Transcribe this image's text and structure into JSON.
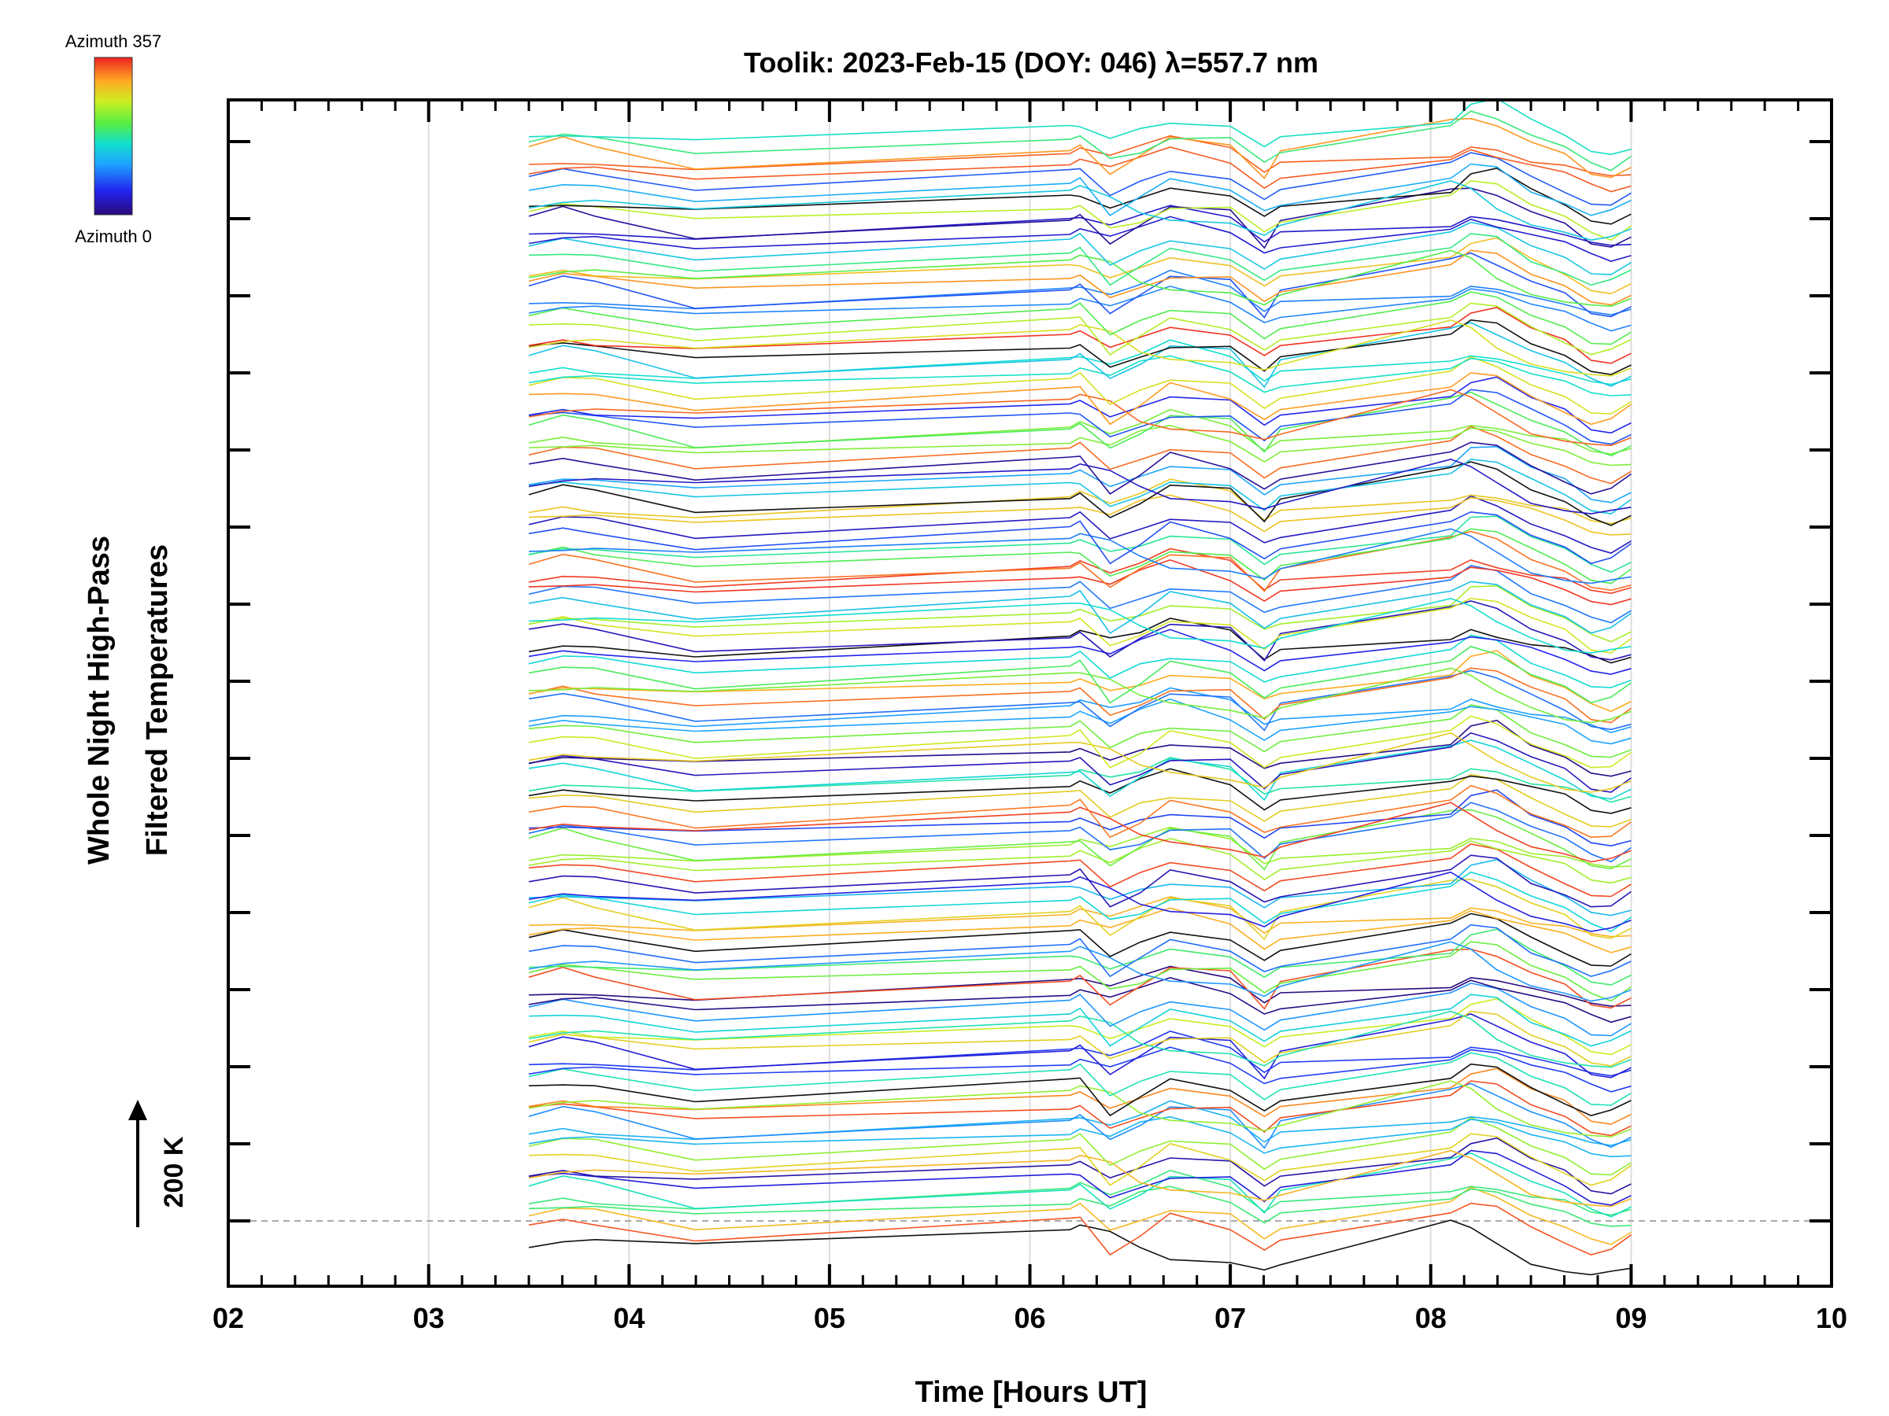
{
  "chart_data": {
    "type": "line",
    "title": "Toolik: 2023-Feb-15 (DOY: 046) λ=557.7 nm",
    "xlabel": "Time [Hours UT]",
    "ylabel_line1": "Whole Night High-Pass",
    "ylabel_line2": "Filtered Temperatures",
    "scale_label": "200 K",
    "colorbar": {
      "top_label": "Azimuth 357",
      "bottom_label": "Azimuth 0",
      "colormap": "rainbow"
    },
    "x_ticks": [
      "02",
      "03",
      "04",
      "05",
      "06",
      "07",
      "08",
      "09",
      "10"
    ],
    "xlim": [
      2,
      10
    ],
    "y_tick_count": 15,
    "grid": true,
    "time_samples": [
      3.5,
      3.67,
      3.83,
      4.33,
      6.2,
      6.25,
      6.4,
      6.55,
      6.7,
      7.0,
      7.17,
      7.25,
      8.1,
      8.2,
      8.33,
      8.5,
      8.67,
      8.8,
      8.9,
      9.0
    ],
    "series_count": 128,
    "series_description_note": "",
    "lines": [
      {
        "azimuth": 0,
        "offset": 0,
        "values": [
          -20,
          -10,
          -8,
          -20,
          20,
          28,
          10,
          -30,
          -50,
          -60,
          -80,
          -60,
          40,
          20,
          -20,
          -60,
          -80,
          -90,
          -85,
          -70
        ]
      },
      {
        "azimuth": 300,
        "offset": 1,
        "values": [
          5,
          15,
          10,
          -30,
          20,
          30,
          -60,
          -20,
          30,
          0,
          -50,
          -30,
          30,
          60,
          50,
          0,
          -30,
          -60,
          -50,
          -20
        ]
      },
      {
        "azimuth": 220,
        "offset": 2,
        "values": [
          10,
          25,
          20,
          -20,
          25,
          35,
          -30,
          0,
          20,
          10,
          -40,
          -20,
          40,
          70,
          55,
          10,
          -20,
          -50,
          -55,
          -30
        ]
      },
      {
        "azimuth": 80,
        "offset": 3,
        "values": [
          0,
          10,
          10,
          -10,
          20,
          30,
          10,
          40,
          60,
          20,
          -30,
          -10,
          30,
          50,
          40,
          20,
          0,
          -30,
          -40,
          -30
        ]
      },
      {
        "azimuth": 40,
        "offset": 4,
        "values": [
          -5,
          5,
          0,
          -15,
          30,
          40,
          20,
          40,
          70,
          40,
          -20,
          0,
          20,
          40,
          30,
          10,
          0,
          -20,
          -30,
          -20
        ]
      },
      {
        "azimuth": 340,
        "offset": 5,
        "values": [
          20,
          40,
          25,
          -30,
          10,
          20,
          -40,
          0,
          40,
          30,
          -50,
          10,
          80,
          90,
          70,
          30,
          0,
          -40,
          -50,
          -30
        ]
      },
      {
        "azimuth": 180,
        "offset": 6,
        "values": [
          15,
          30,
          20,
          -10,
          20,
          25,
          -30,
          -10,
          20,
          20,
          -40,
          -10,
          50,
          80,
          70,
          30,
          0,
          -40,
          -50,
          -20
        ]
      },
      {
        "azimuth": 120,
        "offset": 7,
        "values": [
          0,
          10,
          5,
          -5,
          25,
          30,
          0,
          20,
          40,
          30,
          -20,
          0,
          40,
          80,
          90,
          40,
          10,
          -30,
          -40,
          -20
        ]
      }
    ]
  }
}
